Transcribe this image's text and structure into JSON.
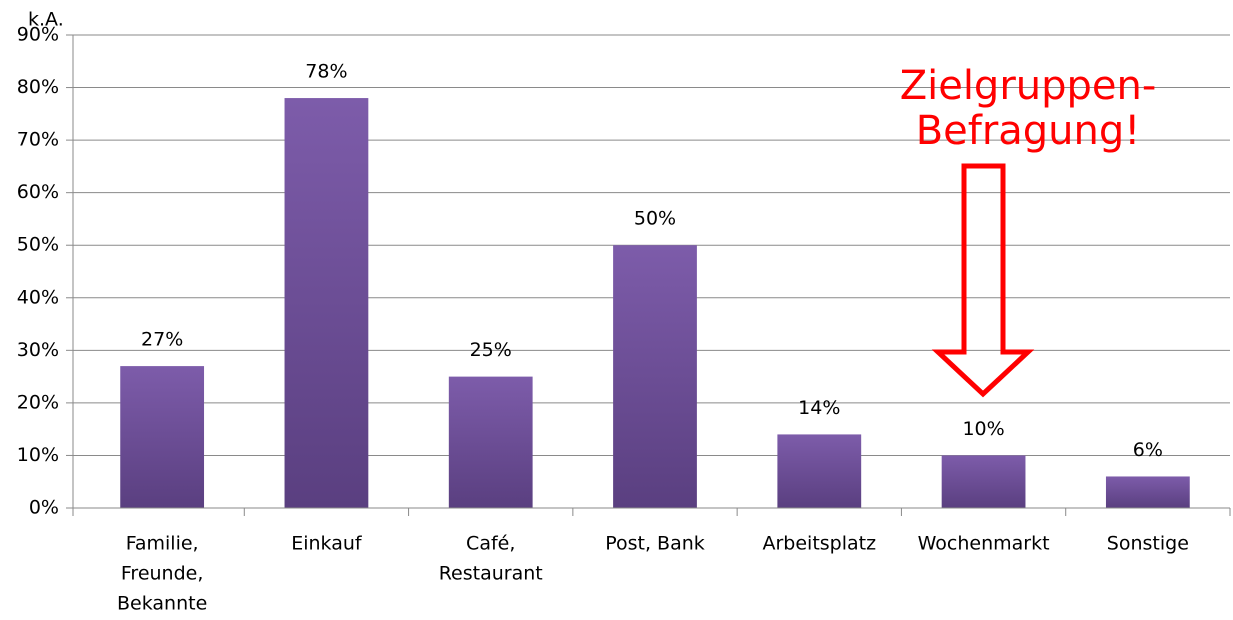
{
  "chart_data": {
    "type": "bar",
    "categories": [
      [
        "Familie,",
        "Freunde,",
        "Bekannte"
      ],
      [
        "Einkauf"
      ],
      [
        "Café,",
        "Restaurant"
      ],
      [
        "Post, Bank"
      ],
      [
        "Arbeitsplatz"
      ],
      [
        "Wochenmarkt"
      ],
      [
        "Sonstige"
      ]
    ],
    "values": [
      27,
      78,
      25,
      50,
      14,
      10,
      6
    ],
    "value_labels": [
      "27%",
      "78%",
      "25%",
      "50%",
      "14%",
      "10%",
      "6%"
    ],
    "color": "#6d4f96",
    "ylim": [
      0,
      90
    ],
    "yticks": [
      {
        "value": 0,
        "label": "0%"
      },
      {
        "value": 10,
        "label": "10%"
      },
      {
        "value": 20,
        "label": "20%"
      },
      {
        "value": 30,
        "label": "30%"
      },
      {
        "value": 40,
        "label": "40%"
      },
      {
        "value": 50,
        "label": "50%"
      },
      {
        "value": 60,
        "label": "60%"
      },
      {
        "value": 70,
        "label": "70%"
      },
      {
        "value": 80,
        "label": "80%"
      },
      {
        "value": 90,
        "label": "90%"
      }
    ],
    "grid": true,
    "corner_label": "k.A.",
    "annotation": [
      "Zielgruppen-",
      "Befragung!"
    ],
    "annotation_color": "#ff0000"
  }
}
